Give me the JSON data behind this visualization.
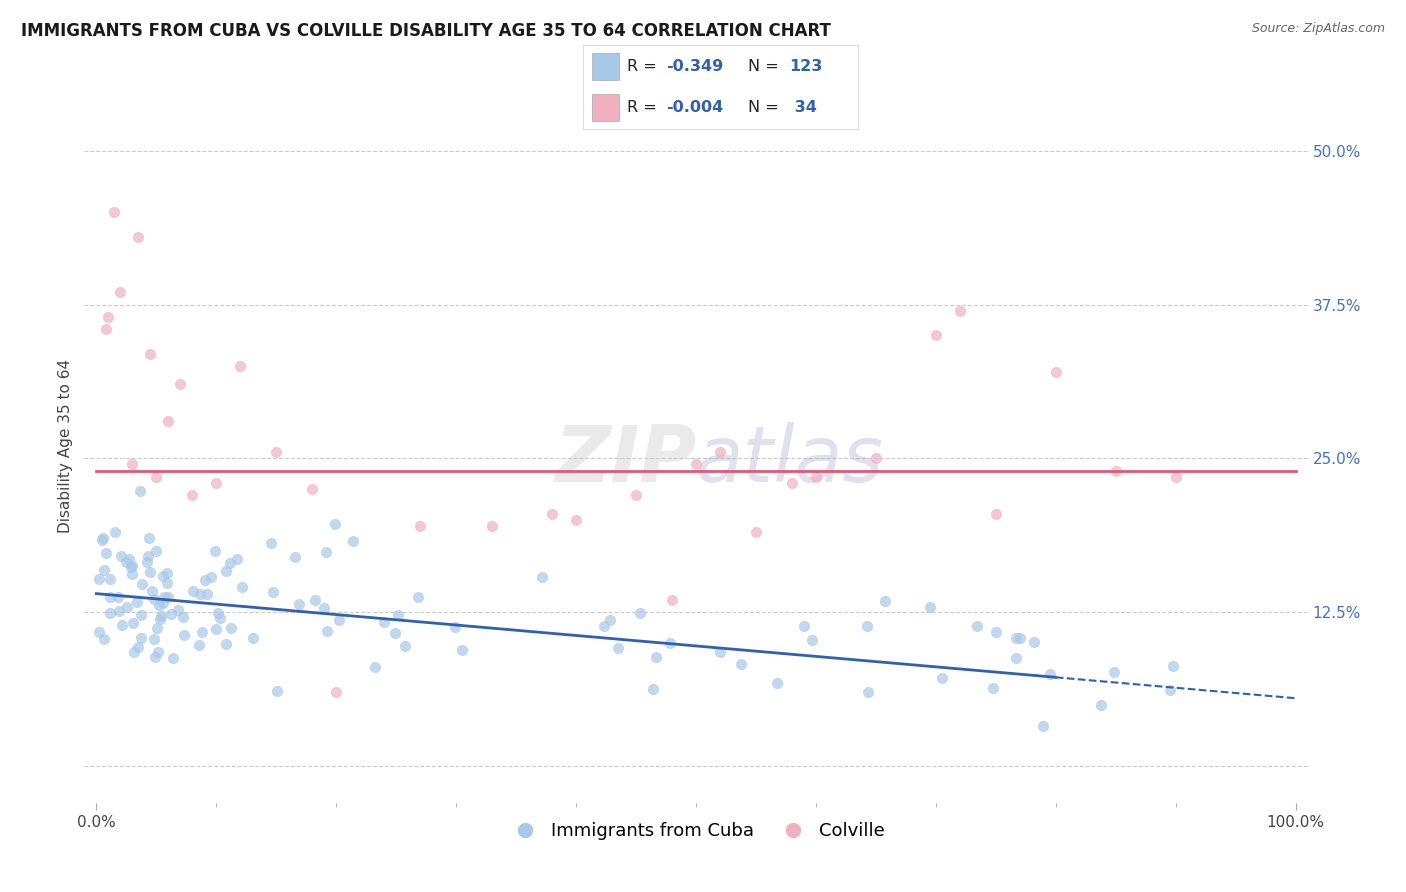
{
  "title": "IMMIGRANTS FROM CUBA VS COLVILLE DISABILITY AGE 35 TO 64 CORRELATION CHART",
  "source": "Source: ZipAtlas.com",
  "ylabel": "Disability Age 35 to 64",
  "watermark": "ZIPatlas",
  "xlim": [
    -1,
    101
  ],
  "ylim": [
    -3,
    55
  ],
  "yticks": [
    0,
    12.5,
    25.0,
    37.5,
    50.0
  ],
  "blue_color": "#a8c8e8",
  "blue_line_color": "#3060b0",
  "pink_color": "#f0b0c0",
  "pink_line_color": "#e05878",
  "R_blue": -0.349,
  "N_blue": 123,
  "R_pink": -0.004,
  "N_pink": 34,
  "background_color": "#ffffff",
  "grid_color": "#cccccc",
  "title_fontsize": 12,
  "label_fontsize": 11,
  "tick_fontsize": 11,
  "legend_fontsize": 13,
  "blue_line_y0": 14.0,
  "blue_line_y1": 5.5,
  "pink_line_y": 24.0
}
